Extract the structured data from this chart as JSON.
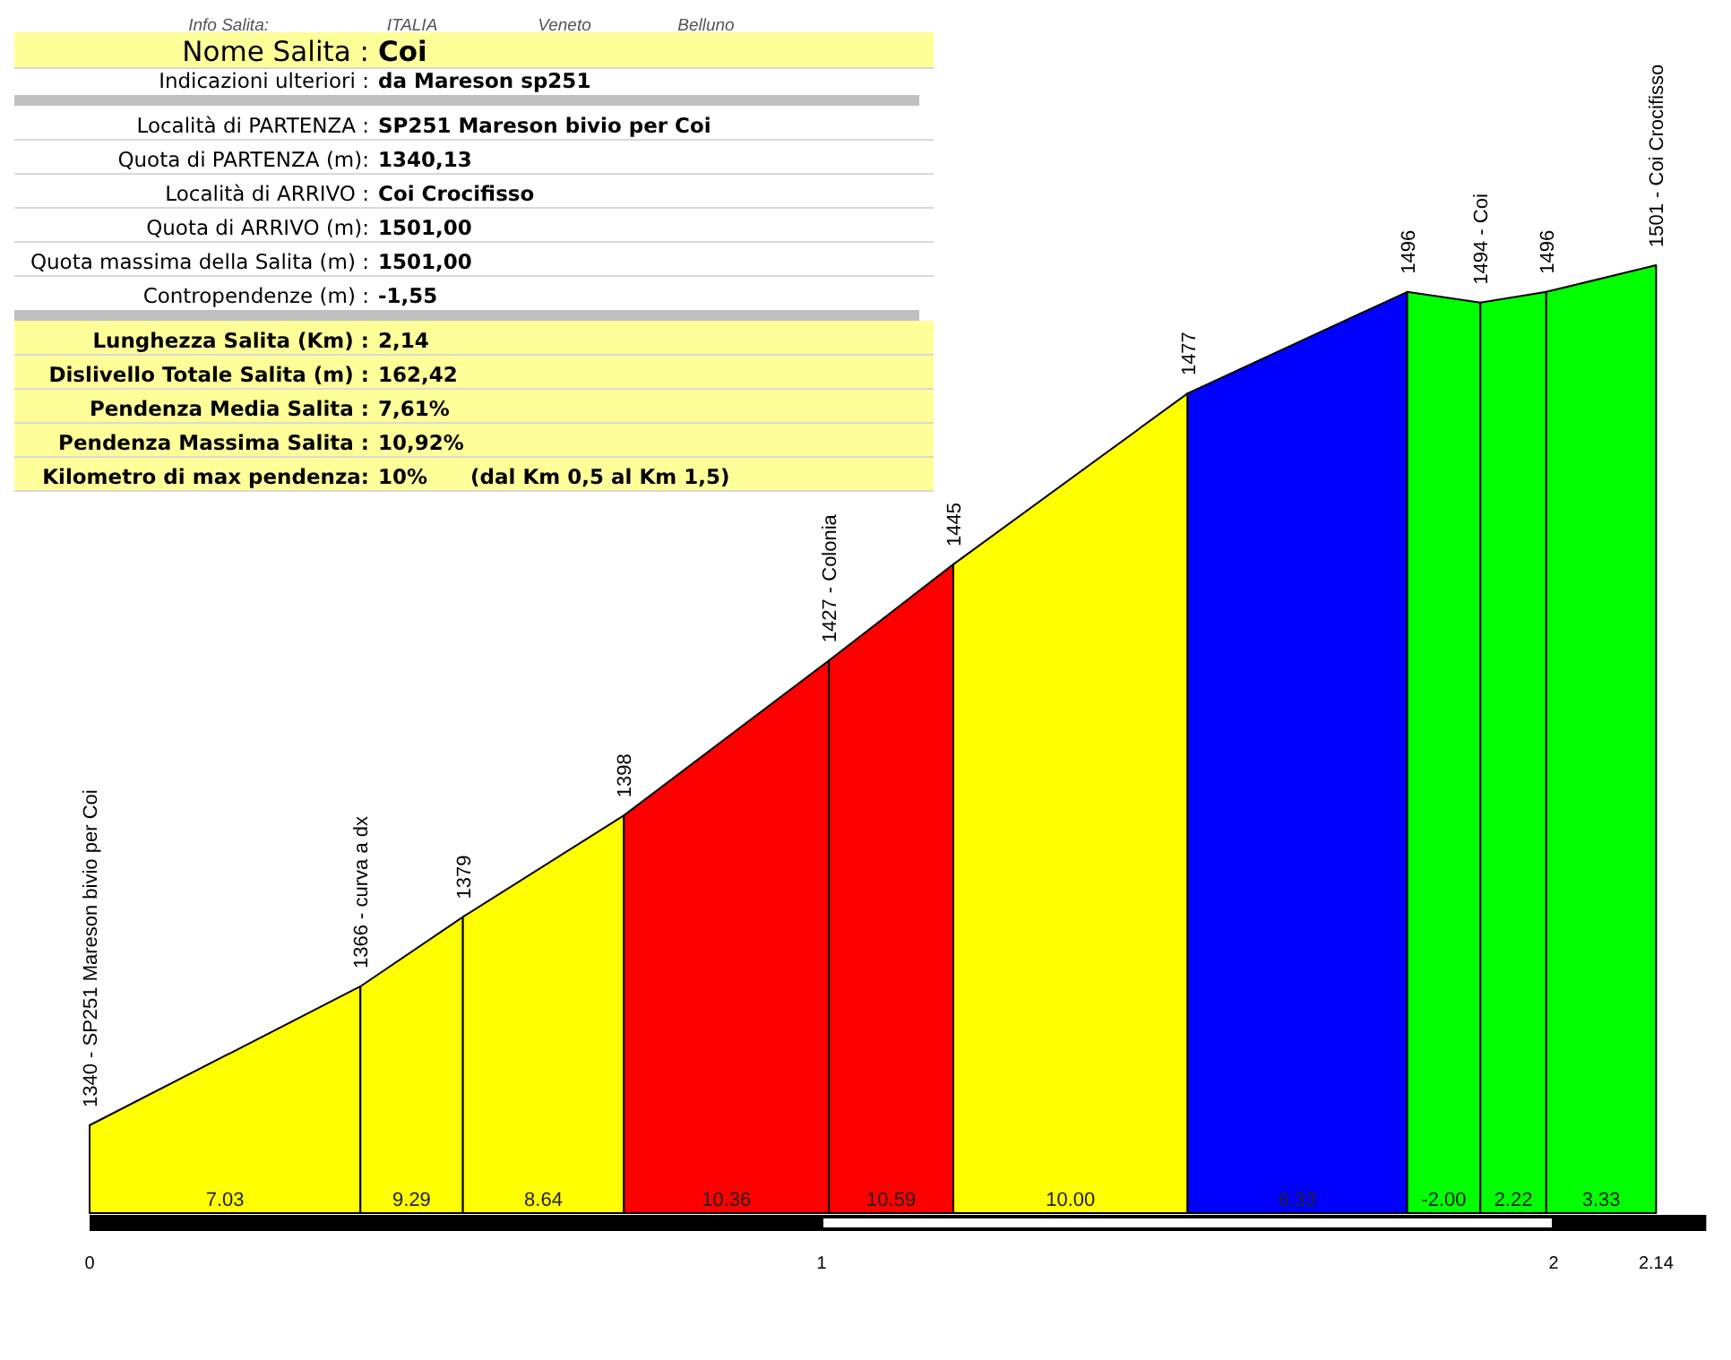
{
  "chart_data": {
    "type": "area",
    "xlim": [
      0,
      2.14
    ],
    "xticks": [
      0,
      1,
      2,
      2.14
    ],
    "tick_labels": "x",
    "series": [
      {
        "x": [
          0,
          0.37
        ],
        "values": [
          1340,
          1366
        ],
        "color": "#ffff00",
        "value_labels": [
          "1340 - SP251 Mareson bivio per Coi",
          null
        ]
      },
      {
        "x": [
          0.37,
          0.51
        ],
        "values": [
          1366,
          1379
        ],
        "color": "#ffff00",
        "value_labels": [
          "1366 - curva a dx",
          null
        ]
      },
      {
        "x": [
          0.51,
          0.73
        ],
        "values": [
          1379,
          1398
        ],
        "color": "#ffff00",
        "value_labels": [
          "1379",
          null
        ]
      },
      {
        "x": [
          0.73,
          1.01
        ],
        "values": [
          1398,
          1427
        ],
        "color": "#ff0000",
        "value_labels": [
          "1398",
          null
        ]
      },
      {
        "x": [
          1.01,
          1.18
        ],
        "values": [
          1427,
          1445
        ],
        "color": "#ff0000",
        "value_labels": [
          "1427 - Colonia",
          null
        ]
      },
      {
        "x": [
          1.18,
          1.5
        ],
        "values": [
          1445,
          1477
        ],
        "color": "#ffff00",
        "value_labels": [
          "1445",
          null
        ]
      },
      {
        "x": [
          1.5,
          1.8
        ],
        "values": [
          1477,
          1496
        ],
        "color": "#0000ff",
        "value_labels": [
          "1477",
          null
        ]
      },
      {
        "x": [
          1.8,
          1.9
        ],
        "values": [
          1496,
          1494
        ],
        "color": "#00ff00",
        "value_labels": [
          "1496",
          null
        ]
      },
      {
        "x": [
          1.9,
          1.99
        ],
        "values": [
          1494,
          1496
        ],
        "color": "#00ff00",
        "value_labels": [
          "1494 - Coi",
          null
        ]
      },
      {
        "x": [
          1.99,
          2.14
        ],
        "values": [
          1496,
          1501
        ],
        "color": "#00ff00",
        "value_labels": [
          "1496",
          "1501 - Coi Crocifisso"
        ]
      }
    ],
    "annotations": [
      "7.03",
      "9.29",
      "8.64",
      "10.36",
      "10.59",
      "10.00",
      "6.33",
      "-2.00",
      "2.22",
      "3.33",
      "Info Salita:",
      "ITALIA",
      "Veneto",
      "Belluno",
      "Nome Salita : Coi",
      "Indicazioni ulteriori : da Mareson sp251",
      "Località di PARTENZA : SP251 Mareson bivio per Coi",
      "Quota di PARTENZA (m): 1340,13",
      "Località di ARRIVO : Coi Crocifisso",
      "Quota di ARRIVO (m): 1501,00",
      "Quota massima della Salita (m) : 1501,00",
      "Contropendenze (m) : -1,55",
      "Lunghezza Salita (Km) : 2,14",
      "Dislivello Totale Salita (m) : 162,42",
      "Pendenza Media Salita : 7,61%",
      "Pendenza Massima Salita : 10,92%",
      "Kilometro di max pendenza: 10%      (dal Km 0,5 al Km 1,5)"
    ]
  }
}
